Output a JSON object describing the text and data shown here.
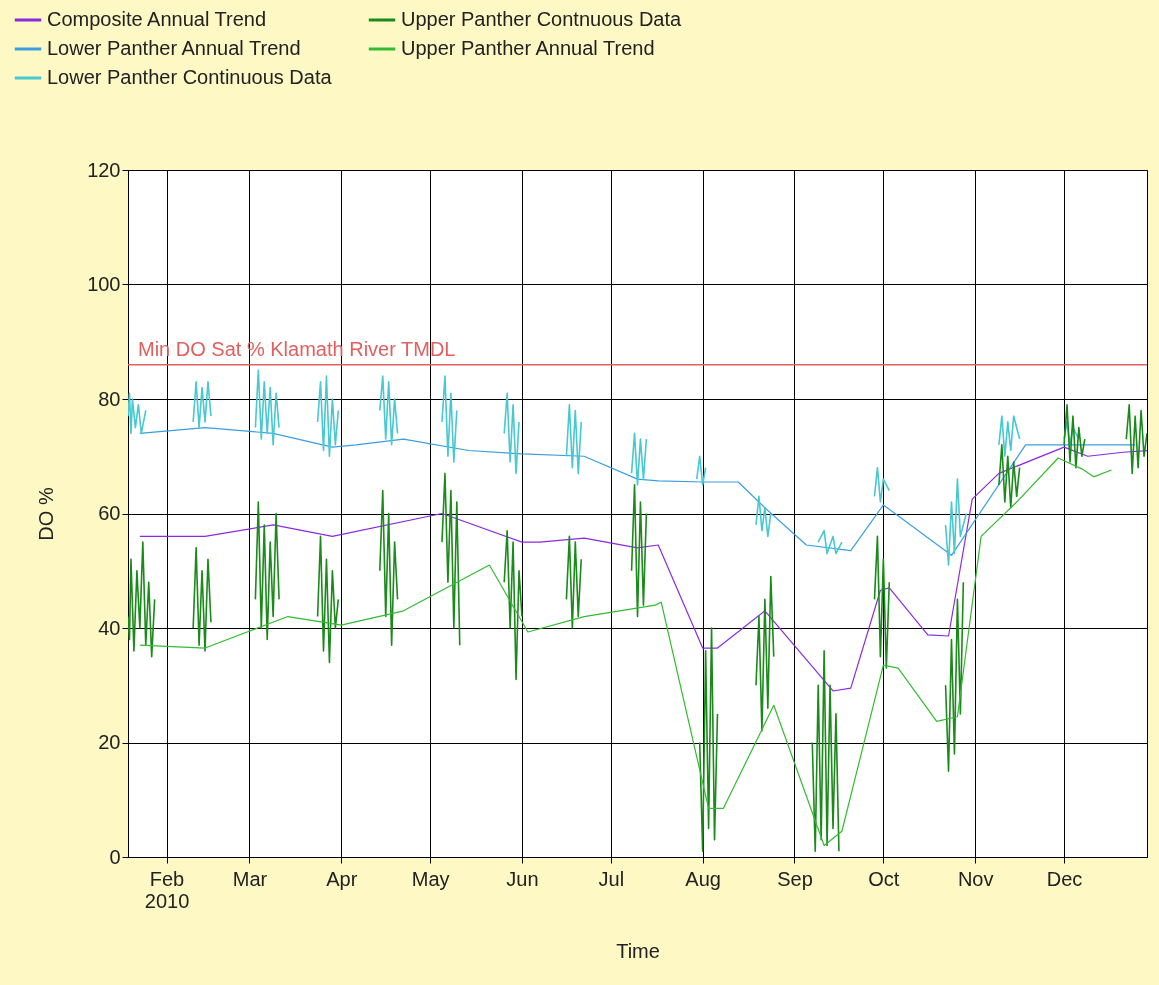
{
  "chart_data": {
    "type": "line",
    "xlabel": "Time",
    "ylabel": "DO %",
    "xlim": [
      "2010-01-19",
      "2010-12-29"
    ],
    "ylim": [
      0,
      120
    ],
    "yticks": [
      0,
      20,
      40,
      60,
      80,
      100,
      120
    ],
    "xticks": [
      {
        "value": "2010-02-01",
        "label": "Feb\n2010"
      },
      {
        "value": "2010-03-01",
        "label": "Mar"
      },
      {
        "value": "2010-04-01",
        "label": "Apr"
      },
      {
        "value": "2010-05-01",
        "label": "May"
      },
      {
        "value": "2010-06-01",
        "label": "Jun"
      },
      {
        "value": "2010-07-01",
        "label": "Jul"
      },
      {
        "value": "2010-08-01",
        "label": "Aug"
      },
      {
        "value": "2010-09-01",
        "label": "Sep"
      },
      {
        "value": "2010-10-01",
        "label": "Oct"
      },
      {
        "value": "2010-11-01",
        "label": "Nov"
      },
      {
        "value": "2010-12-01",
        "label": "Dec"
      }
    ],
    "grid": true,
    "legend": "top left",
    "marker": "none",
    "line_style": "solid",
    "ref_lines": [
      {
        "axis": "y",
        "value": 86,
        "label": "Min DO Sat % Klamath River TMDL",
        "color": "#e06060"
      }
    ],
    "series": [
      {
        "name": "Composite Annual Trend",
        "color": "#8a2be2",
        "x": [
          "2010-01-23",
          "2010-02-14",
          "2010-03-09",
          "2010-03-29",
          "2010-05-05",
          "2010-06-01",
          "2010-06-07",
          "2010-06-22",
          "2010-07-10",
          "2010-07-17",
          "2010-08-01",
          "2010-08-06",
          "2010-08-22",
          "2010-09-14",
          "2010-09-20",
          "2010-09-30",
          "2010-10-03",
          "2010-10-16",
          "2010-10-23",
          "2010-10-31",
          "2010-11-09",
          "2010-12-01",
          "2010-12-09",
          "2010-12-21",
          "2010-12-29"
        ],
        "values": [
          56,
          56,
          58,
          56,
          60,
          55,
          55,
          55.7,
          54,
          54.5,
          36.5,
          36.5,
          43,
          29,
          29.5,
          46.6,
          47,
          38.8,
          38.6,
          62.5,
          67,
          71.6,
          70,
          70.7,
          71
        ]
      },
      {
        "name": "Lower Panther Annual Trend",
        "color": "#3a9ee0",
        "x": [
          "2010-01-23",
          "2010-02-14",
          "2010-03-09",
          "2010-03-29",
          "2010-04-06",
          "2010-04-22",
          "2010-05-14",
          "2010-06-01",
          "2010-06-22",
          "2010-07-10",
          "2010-07-17",
          "2010-08-01",
          "2010-08-13",
          "2010-08-22",
          "2010-09-05",
          "2010-09-20",
          "2010-10-01",
          "2010-10-24",
          "2010-11-18",
          "2010-12-01",
          "2010-12-25"
        ],
        "values": [
          74,
          75,
          74,
          71.6,
          72,
          73,
          71,
          70.4,
          70,
          66,
          65.7,
          65.5,
          65.5,
          61,
          54.5,
          53.5,
          61.5,
          52.7,
          72,
          72,
          72
        ]
      },
      {
        "name": "Lower Panther Continuous Data",
        "color": "#48c8d0",
        "x": [
          "2010-01-19",
          "2010-01-19T12:00",
          "2010-01-20",
          "2010-01-20T12:00",
          "2010-01-21T12:00",
          "2010-01-22T12:00",
          "2010-01-23T12:00",
          "2010-01-25",
          "2010-01-27",
          "2010-02-10",
          "2010-02-11",
          "2010-02-12",
          "2010-02-13",
          "2010-02-14",
          "2010-02-15",
          "2010-02-16",
          "2010-02-20",
          "2010-03-03",
          "2010-03-04",
          "2010-03-05",
          "2010-03-06",
          "2010-03-07",
          "2010-03-08",
          "2010-03-09",
          "2010-03-10",
          "2010-03-11",
          "2010-03-15",
          "2010-03-24",
          "2010-03-25",
          "2010-03-26",
          "2010-03-27",
          "2010-03-28",
          "2010-03-29",
          "2010-03-30",
          "2010-03-31",
          "2010-04-05",
          "2010-04-14",
          "2010-04-15",
          "2010-04-16",
          "2010-04-17",
          "2010-04-18",
          "2010-04-19",
          "2010-04-20",
          "2010-04-25",
          "2010-05-05",
          "2010-05-06",
          "2010-05-07",
          "2010-05-08",
          "2010-05-09",
          "2010-05-10",
          "2010-05-15",
          "2010-05-26",
          "2010-05-27",
          "2010-05-28",
          "2010-05-29",
          "2010-05-30",
          "2010-05-31",
          "2010-06-05",
          "2010-06-16",
          "2010-06-17",
          "2010-06-18",
          "2010-06-19",
          "2010-06-20",
          "2010-06-21",
          "2010-06-25",
          "2010-07-08",
          "2010-07-09",
          "2010-07-10",
          "2010-07-11",
          "2010-07-12",
          "2010-07-13",
          "2010-07-18",
          "2010-07-30",
          "2010-07-31",
          "2010-08-01",
          "2010-08-02",
          "2010-08-06",
          "2010-08-19",
          "2010-08-20",
          "2010-08-21",
          "2010-08-22",
          "2010-08-23",
          "2010-08-24",
          "2010-08-28",
          "2010-09-09",
          "2010-09-11",
          "2010-09-12",
          "2010-09-14",
          "2010-09-15",
          "2010-09-17",
          "2010-09-22",
          "2010-09-28",
          "2010-09-29",
          "2010-09-30",
          "2010-10-01",
          "2010-10-03",
          "2010-10-08",
          "2010-10-22",
          "2010-10-23",
          "2010-10-24",
          "2010-10-25",
          "2010-10-26",
          "2010-10-27",
          "2010-10-29",
          "2010-11-04",
          "2010-11-09",
          "2010-11-10",
          "2010-11-11",
          "2010-11-12",
          "2010-11-13",
          "2010-11-14",
          "2010-11-16",
          "2010-11-22",
          "2010-12-01",
          "2010-12-02",
          "2010-12-03",
          "2010-12-04",
          "2010-12-06"
        ],
        "values": [
          77,
          81,
          74,
          80,
          75,
          79,
          74,
          78,
          null,
          76,
          83,
          75,
          82,
          76,
          83,
          77,
          null,
          75,
          85,
          73,
          83,
          74,
          82,
          72,
          81,
          75,
          null,
          76,
          83,
          71,
          84,
          70,
          80,
          72,
          78,
          null,
          78,
          84,
          73,
          83,
          72,
          80,
          74,
          null,
          76,
          84,
          70,
          81,
          69,
          78,
          null,
          74,
          81,
          69,
          79,
          67,
          76,
          null,
          70,
          79,
          68,
          78,
          67,
          76,
          null,
          67,
          74,
          65,
          73,
          66,
          73,
          null,
          66,
          70,
          65,
          68,
          null,
          58,
          63,
          57,
          61,
          56,
          60,
          null,
          55,
          57,
          53,
          56,
          53,
          55,
          null,
          63,
          68,
          62,
          66,
          64,
          null,
          58,
          51,
          62,
          53,
          66,
          56,
          60,
          null,
          72,
          77,
          70,
          76,
          71,
          77,
          73,
          null,
          73,
          76,
          72,
          75,
          73
        ]
      },
      {
        "name": "Upper Panther Contnuous Data",
        "color": "#1a8a1a",
        "x": [
          "2010-01-19",
          "2010-01-19T12:00",
          "2010-01-20",
          "2010-01-21",
          "2010-01-22",
          "2010-01-23",
          "2010-01-24",
          "2010-01-25",
          "2010-01-26",
          "2010-01-27",
          "2010-01-28",
          "2010-02-01",
          "2010-02-10",
          "2010-02-11",
          "2010-02-12",
          "2010-02-13",
          "2010-02-14",
          "2010-02-15",
          "2010-02-16",
          "2010-02-20",
          "2010-03-03",
          "2010-03-04",
          "2010-03-05",
          "2010-03-06",
          "2010-03-07",
          "2010-03-08",
          "2010-03-09",
          "2010-03-10",
          "2010-03-11",
          "2010-03-15",
          "2010-03-24",
          "2010-03-25",
          "2010-03-26",
          "2010-03-27",
          "2010-03-28",
          "2010-03-29",
          "2010-03-30",
          "2010-03-31",
          "2010-04-05",
          "2010-04-14",
          "2010-04-15",
          "2010-04-16",
          "2010-04-17",
          "2010-04-18",
          "2010-04-19",
          "2010-04-20",
          "2010-04-25",
          "2010-05-05",
          "2010-05-06",
          "2010-05-07",
          "2010-05-08",
          "2010-05-09",
          "2010-05-10",
          "2010-05-11",
          "2010-05-15",
          "2010-05-26",
          "2010-05-27",
          "2010-05-28",
          "2010-05-29",
          "2010-05-30",
          "2010-05-31",
          "2010-06-01",
          "2010-06-05",
          "2010-06-16",
          "2010-06-17",
          "2010-06-18",
          "2010-06-19",
          "2010-06-20",
          "2010-06-21",
          "2010-06-25",
          "2010-07-08",
          "2010-07-09",
          "2010-07-10",
          "2010-07-11",
          "2010-07-12",
          "2010-07-13",
          "2010-07-20",
          "2010-07-31",
          "2010-08-01",
          "2010-08-02",
          "2010-08-03",
          "2010-08-04",
          "2010-08-05",
          "2010-08-06",
          "2010-08-10",
          "2010-08-19",
          "2010-08-20",
          "2010-08-21",
          "2010-08-22",
          "2010-08-23",
          "2010-08-24",
          "2010-08-25",
          "2010-08-28",
          "2010-09-07",
          "2010-09-08",
          "2010-09-09",
          "2010-09-10",
          "2010-09-11",
          "2010-09-12",
          "2010-09-13",
          "2010-09-14",
          "2010-09-15",
          "2010-09-16",
          "2010-09-22",
          "2010-09-28",
          "2010-09-29",
          "2010-09-30",
          "2010-10-01",
          "2010-10-02",
          "2010-10-03",
          "2010-10-08",
          "2010-10-22",
          "2010-10-23",
          "2010-10-24",
          "2010-10-25",
          "2010-10-26",
          "2010-10-27",
          "2010-10-28",
          "2010-11-04",
          "2010-11-09",
          "2010-11-10",
          "2010-11-11",
          "2010-11-12",
          "2010-11-13",
          "2010-11-14",
          "2010-11-15",
          "2010-11-16",
          "2010-11-22",
          "2010-12-01",
          "2010-12-02",
          "2010-12-03",
          "2010-12-04",
          "2010-12-05",
          "2010-12-06",
          "2010-12-07",
          "2010-12-08",
          "2010-12-15",
          "2010-12-22",
          "2010-12-23",
          "2010-12-24",
          "2010-12-25",
          "2010-12-26",
          "2010-12-27",
          "2010-12-28",
          "2010-12-29"
        ],
        "values": [
          42,
          38,
          52,
          36,
          50,
          40,
          55,
          37,
          48,
          35,
          45,
          null,
          40,
          54,
          37,
          50,
          36,
          52,
          41,
          null,
          45,
          62,
          40,
          58,
          38,
          55,
          42,
          60,
          45,
          null,
          42,
          56,
          36,
          52,
          34,
          50,
          40,
          45,
          null,
          50,
          64,
          42,
          60,
          37,
          55,
          45,
          null,
          55,
          67,
          48,
          64,
          40,
          62,
          37,
          null,
          48,
          57,
          40,
          55,
          31,
          50,
          42,
          null,
          45,
          56,
          40,
          55,
          42,
          52,
          null,
          50,
          65,
          42,
          62,
          44,
          60,
          null,
          20,
          1,
          36,
          5,
          40,
          3,
          25,
          null,
          30,
          42,
          22,
          45,
          26,
          49,
          35,
          null,
          20,
          1,
          30,
          3,
          36,
          2,
          30,
          5,
          25,
          1,
          null,
          45,
          56,
          35,
          52,
          33,
          48,
          null,
          30,
          15,
          38,
          18,
          45,
          25,
          48,
          null,
          65,
          72,
          62,
          70,
          61,
          69,
          63,
          68,
          null,
          72,
          79,
          69,
          77,
          68,
          75,
          70,
          73,
          null,
          73,
          79,
          67,
          77,
          68,
          78,
          70,
          74
        ]
      },
      {
        "name": "Upper Panther Annual Trend",
        "color": "#33bb33",
        "x": [
          "2010-01-23",
          "2010-02-14",
          "2010-03-14",
          "2010-04-01",
          "2010-04-22",
          "2010-05-21",
          "2010-06-03",
          "2010-06-22",
          "2010-07-16",
          "2010-07-18",
          "2010-08-03",
          "2010-08-08",
          "2010-08-25",
          "2010-09-11",
          "2010-09-17",
          "2010-10-01",
          "2010-10-06",
          "2010-10-19",
          "2010-10-26",
          "2010-11-03",
          "2010-11-15",
          "2010-11-29",
          "2010-12-07",
          "2010-12-11",
          "2010-12-17"
        ],
        "values": [
          37,
          36.5,
          42,
          40.5,
          43,
          51,
          39.3,
          42,
          44,
          44.5,
          8.5,
          8.5,
          26.5,
          2,
          4.5,
          33.5,
          33,
          23.7,
          24.5,
          56,
          62,
          69.7,
          67.8,
          66.4,
          67.6
        ]
      }
    ]
  }
}
